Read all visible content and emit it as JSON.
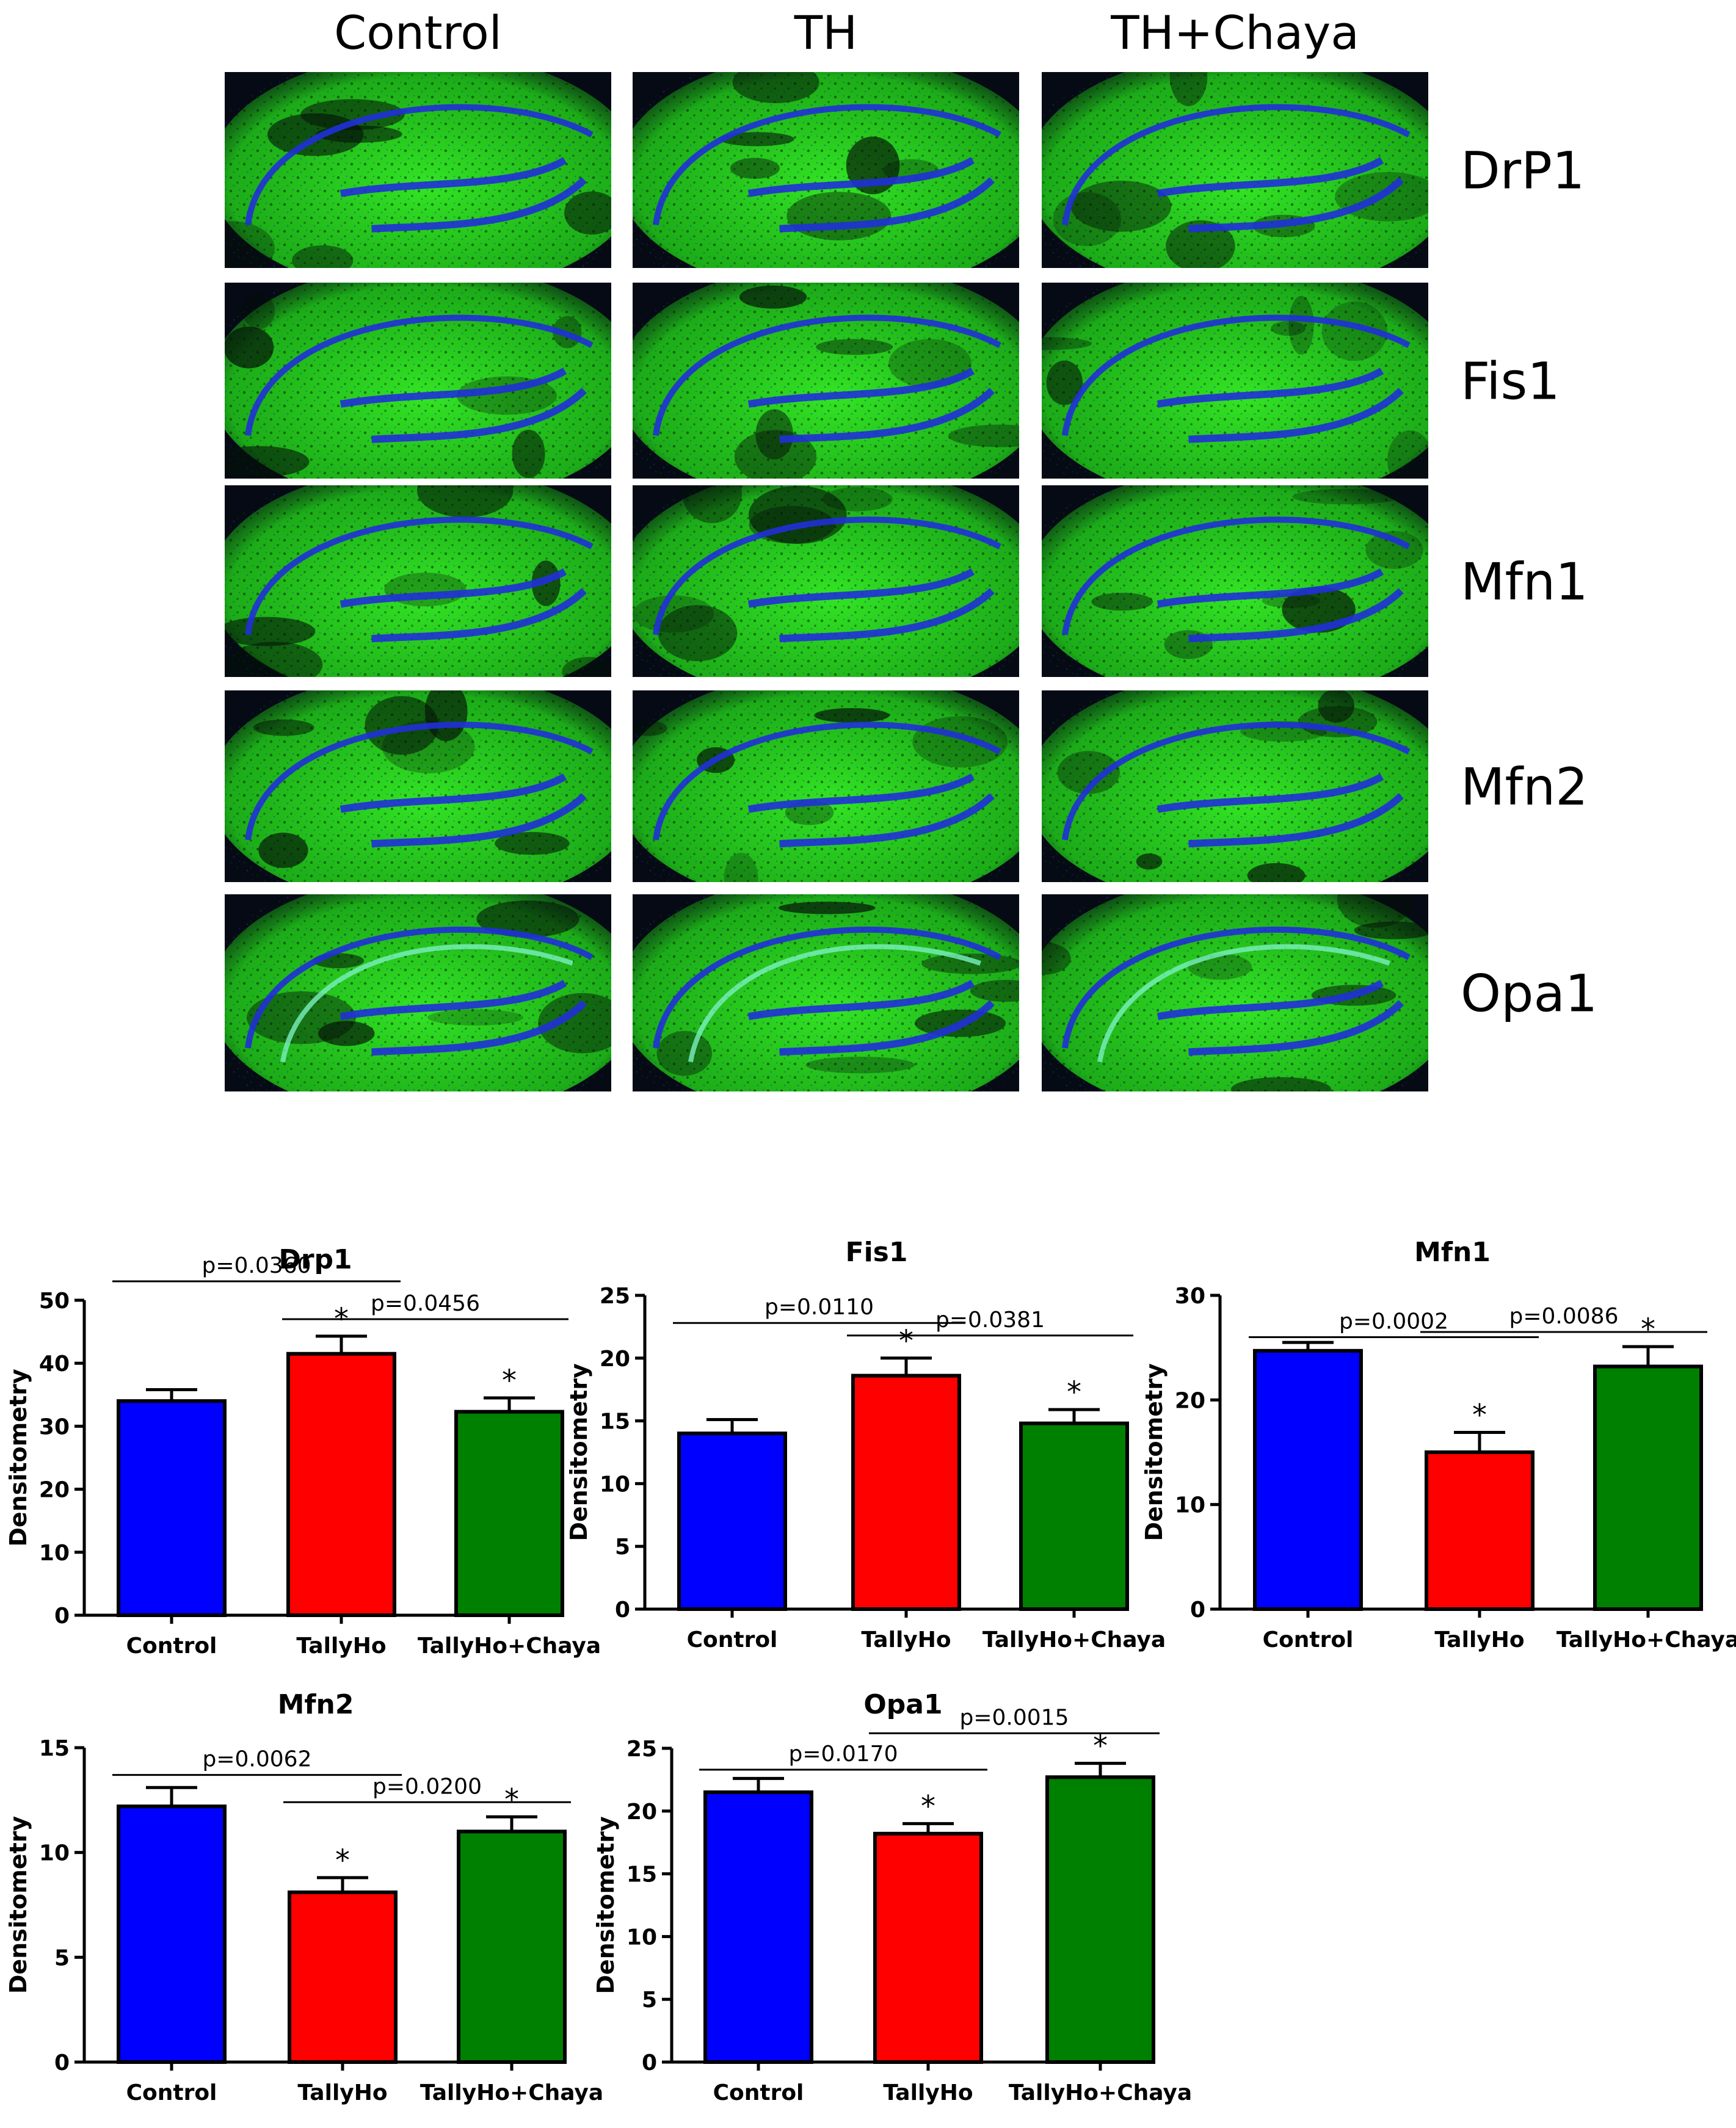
{
  "micrographs": {
    "columns": [
      "Control",
      "TH",
      "TH+Chaya"
    ],
    "rows": [
      "DrP1",
      "Fis1",
      "Mfn1",
      "Mfn2",
      "Opa1"
    ],
    "colors": {
      "background": "#050a14",
      "stain": "#2ee81e",
      "nuclei": "#2030d8"
    }
  },
  "chart_data": [
    {
      "type": "bar",
      "title": "Drp1",
      "ylabel": "Densitometry",
      "xlabel": "",
      "categories": [
        "Control",
        "TallyHo",
        "TallyHo+Chaya"
      ],
      "values": [
        34,
        41.5,
        32.3
      ],
      "errors": [
        1.8,
        2.8,
        2.2
      ],
      "colors": [
        "#0000ff",
        "#ff0000",
        "#008000"
      ],
      "ylim": [
        0,
        50
      ],
      "yticks": [
        0,
        10,
        20,
        30,
        40,
        50
      ],
      "significance": [
        "",
        "*",
        "*"
      ],
      "comparisons": [
        {
          "label": "p=0.0360",
          "from": 0,
          "to": 1,
          "level": 53
        },
        {
          "label": "p=0.0456",
          "from": 1,
          "to": 2,
          "level": 47
        }
      ]
    },
    {
      "type": "bar",
      "title": "Fis1",
      "ylabel": "Densitometry",
      "xlabel": "",
      "categories": [
        "Control",
        "TallyHo",
        "TallyHo+Chaya"
      ],
      "values": [
        14,
        18.6,
        14.8
      ],
      "errors": [
        1.1,
        1.4,
        1.1
      ],
      "colors": [
        "#0000ff",
        "#ff0000",
        "#008000"
      ],
      "ylim": [
        0,
        25
      ],
      "yticks": [
        0,
        5,
        10,
        15,
        20,
        25
      ],
      "significance": [
        "",
        "*",
        "*"
      ],
      "comparisons": [
        {
          "label": "p=0.0110",
          "from": 0,
          "to": 1,
          "level": 22.8
        },
        {
          "label": "p=0.0381",
          "from": 1,
          "to": 2,
          "level": 21.8
        }
      ]
    },
    {
      "type": "bar",
      "title": "Mfn1",
      "ylabel": "Densitometry",
      "xlabel": "",
      "categories": [
        "Control",
        "TallyHo",
        "TallyHo+Chaya"
      ],
      "values": [
        24.7,
        15,
        23.2
      ],
      "errors": [
        0.8,
        1.9,
        1.9
      ],
      "colors": [
        "#0000ff",
        "#ff0000",
        "#008000"
      ],
      "ylim": [
        0,
        30
      ],
      "yticks": [
        0,
        10,
        20,
        30
      ],
      "significance": [
        "",
        "*",
        "*"
      ],
      "comparisons": [
        {
          "label": "p=0.0002",
          "from": 0,
          "to": 1,
          "level": 26
        },
        {
          "label": "p=0.0086",
          "from": 1,
          "to": 2,
          "level": 26.5
        }
      ]
    },
    {
      "type": "bar",
      "title": "Mfn2",
      "ylabel": "Densitometry",
      "xlabel": "",
      "categories": [
        "Control",
        "TallyHo",
        "TallyHo+Chaya"
      ],
      "values": [
        12.2,
        8.1,
        11
      ],
      "errors": [
        0.9,
        0.7,
        0.7
      ],
      "colors": [
        "#0000ff",
        "#ff0000",
        "#008000"
      ],
      "ylim": [
        0,
        15
      ],
      "yticks": [
        0,
        5,
        10,
        15
      ],
      "significance": [
        "",
        "*",
        "*"
      ],
      "comparisons": [
        {
          "label": "p=0.0062",
          "from": 0,
          "to": 1,
          "level": 13.7
        },
        {
          "label": "p=0.0200",
          "from": 1,
          "to": 2,
          "level": 12.4
        }
      ]
    },
    {
      "type": "bar",
      "title": "Opa1",
      "ylabel": "Densitometry",
      "xlabel": "",
      "categories": [
        "Control",
        "TallyHo",
        "TallyHo+Chaya"
      ],
      "values": [
        21.5,
        18.2,
        22.7
      ],
      "errors": [
        1.1,
        0.8,
        1.1
      ],
      "colors": [
        "#0000ff",
        "#ff0000",
        "#008000"
      ],
      "ylim": [
        0,
        25
      ],
      "yticks": [
        0,
        5,
        10,
        15,
        20,
        25
      ],
      "significance": [
        "",
        "*",
        "*"
      ],
      "comparisons": [
        {
          "label": "p=0.0170",
          "from": 0,
          "to": 1,
          "level": 23.3
        },
        {
          "label": "p=0.0015",
          "from": 1,
          "to": 2,
          "level": 26.2
        }
      ]
    }
  ]
}
